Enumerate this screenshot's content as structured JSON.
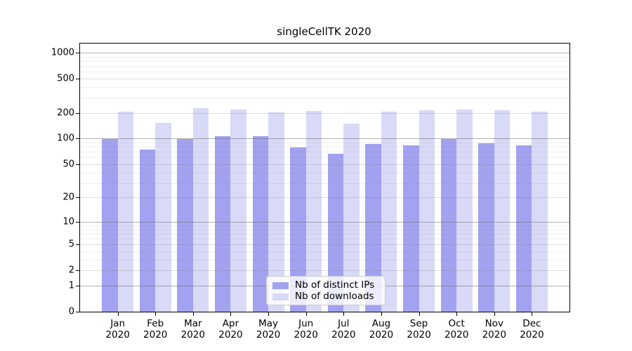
{
  "chart_data": {
    "type": "bar",
    "title": "singleCellTK 2020",
    "year_label": "2020",
    "categories": [
      "Jan",
      "Feb",
      "Mar",
      "Apr",
      "May",
      "Jun",
      "Jul",
      "Aug",
      "Sep",
      "Oct",
      "Nov",
      "Dec"
    ],
    "series": [
      {
        "name": "Nb of distinct IPs",
        "color": "#a2a2f0",
        "values": [
          99,
          74,
          99,
          106,
          106,
          79,
          67,
          87,
          83,
          99,
          88,
          83
        ]
      },
      {
        "name": "Nb of downloads",
        "color": "#d9d9f8",
        "values": [
          207,
          152,
          228,
          219,
          203,
          212,
          149,
          207,
          214,
          217,
          213,
          206
        ]
      }
    ],
    "y_axis": {
      "scale": "log1p",
      "tick_labels": [
        0,
        1,
        2,
        5,
        10,
        20,
        50,
        100,
        200,
        500,
        1000
      ],
      "major_gridlines": [
        1,
        10,
        100,
        1000
      ],
      "minor_gridlines": [
        2,
        5,
        20,
        50,
        200,
        500
      ],
      "sub_gridlines": [
        3,
        4,
        6,
        7,
        8,
        9,
        30,
        40,
        60,
        70,
        80,
        90,
        300,
        400,
        600,
        700,
        800,
        900
      ],
      "range": [
        0,
        1260
      ]
    },
    "legend": {
      "position": "lower center"
    },
    "grid": true
  }
}
